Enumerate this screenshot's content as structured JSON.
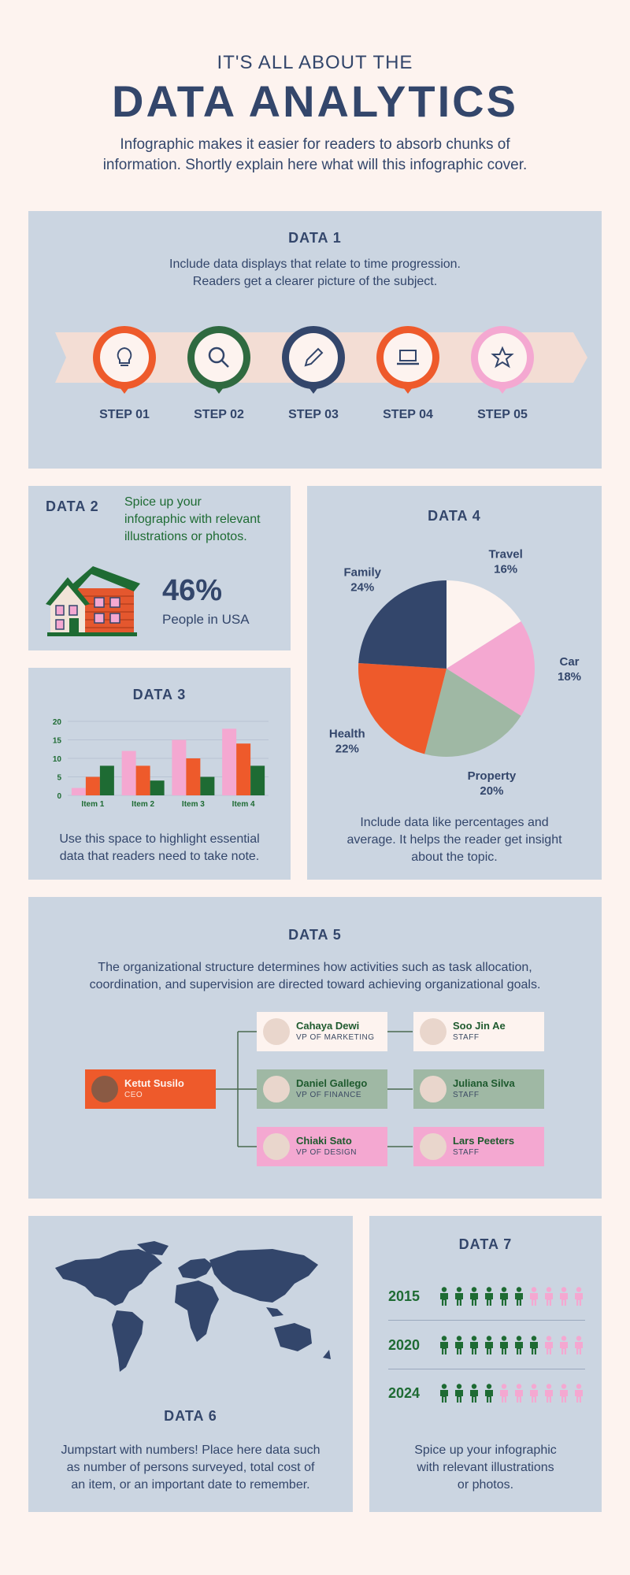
{
  "header": {
    "subtitle": "IT'S ALL ABOUT THE",
    "title": "DATA ANALYTICS",
    "intro_line1": "Infographic makes it easier for readers to absorb chunks of",
    "intro_line2": "information. Shortly explain here what will this infographic cover."
  },
  "data1": {
    "title": "DATA 1",
    "text_line1": "Include data displays that relate to time progression.",
    "text_line2": "Readers get a clearer picture of the subject.",
    "steps": [
      {
        "label": "STEP 01",
        "icon": "lightbulb-icon",
        "color": "#ee5a2b"
      },
      {
        "label": "STEP 02",
        "icon": "search-icon",
        "color": "#2f6a40"
      },
      {
        "label": "STEP 03",
        "icon": "pencil-icon",
        "color": "#33466b"
      },
      {
        "label": "STEP 04",
        "icon": "laptop-icon",
        "color": "#ee5a2b"
      },
      {
        "label": "STEP 05",
        "icon": "star-icon",
        "color": "#f4a8d1"
      }
    ]
  },
  "data2": {
    "title": "DATA 2",
    "text_line1": "Spice up your",
    "text_line2": "infographic with relevant",
    "text_line3": "illustrations or photos.",
    "percent": "46%",
    "caption": "People in USA"
  },
  "data3": {
    "title": "DATA 3",
    "text_line1": "Use this space to highlight essential",
    "text_line2": "data that readers need to take note."
  },
  "data4": {
    "title": "DATA 4",
    "text_line1": "Include data like percentages and",
    "text_line2": "average. It helps the reader get insight",
    "text_line3": "about the topic."
  },
  "data5": {
    "title": "DATA 5",
    "text_line1": "The organizational structure determines how activities such as task allocation,",
    "text_line2": "coordination, and supervision are directed toward achieving organizational goals.",
    "ceo": {
      "name": "Ketut Susilo",
      "role": "CEO"
    },
    "vps": [
      {
        "name": "Cahaya Dewi",
        "role": "VP OF MARKETING",
        "color": "#fdf3ef"
      },
      {
        "name": "Daniel Gallego",
        "role": "VP OF FINANCE",
        "color": "#9fb8a4"
      },
      {
        "name": "Chiaki Sato",
        "role": "VP OF DESIGN",
        "color": "#f4a8d1"
      }
    ],
    "staff": [
      {
        "name": "Soo Jin Ae",
        "role": "STAFF",
        "color": "#fdf3ef"
      },
      {
        "name": "Juliana Silva",
        "role": "STAFF",
        "color": "#9fb8a4"
      },
      {
        "name": "Lars Peeters",
        "role": "STAFF",
        "color": "#f4a8d1"
      }
    ]
  },
  "data6": {
    "title": "DATA 6",
    "text_line1": "Jumpstart with numbers! Place here data such",
    "text_line2": "as number of persons surveyed, total cost of",
    "text_line3": "an item, or an important date to remember."
  },
  "data7": {
    "title": "DATA 7",
    "rows": [
      {
        "year": "2015",
        "filled": 6,
        "total": 10
      },
      {
        "year": "2020",
        "filled": 7,
        "total": 10
      },
      {
        "year": "2024",
        "filled": 4,
        "total": 10
      }
    ],
    "text_line1": "Spice up your infographic",
    "text_line2": "with relevant illustrations",
    "text_line3": "or photos."
  },
  "colors": {
    "navy": "#33466b",
    "orange": "#ee5a2b",
    "green": "#1e6b33",
    "pink": "#f4a8d1",
    "sage": "#9fb8a4",
    "cream": "#fdf3ef",
    "panel": "#cbd5e1"
  },
  "chart_data": [
    {
      "type": "bar",
      "categories": [
        "Item 1",
        "Item 2",
        "Item 3",
        "Item 4"
      ],
      "series": [
        {
          "values": [
            2,
            12,
            15,
            18
          ],
          "color": "#f4a8d1"
        },
        {
          "values": [
            5,
            8,
            10,
            14
          ],
          "color": "#ee5a2b"
        },
        {
          "values": [
            8,
            4,
            5,
            8
          ],
          "color": "#1e6b33"
        }
      ],
      "ylim": [
        0,
        20
      ],
      "yticks": [
        "0",
        "5",
        "10",
        "15",
        "20"
      ]
    },
    {
      "type": "pie",
      "slices": [
        {
          "label": "Travel",
          "pct_label": "16%",
          "value": 16,
          "color": "#fdf3ef"
        },
        {
          "label": "Car",
          "pct_label": "18%",
          "value": 18,
          "color": "#f4a8d1"
        },
        {
          "label": "Property",
          "pct_label": "20%",
          "value": 20,
          "color": "#9fb8a4"
        },
        {
          "label": "Health",
          "pct_label": "22%",
          "value": 22,
          "color": "#ee5a2b"
        },
        {
          "label": "Family",
          "pct_label": "24%",
          "value": 24,
          "color": "#33466b"
        }
      ]
    }
  ]
}
